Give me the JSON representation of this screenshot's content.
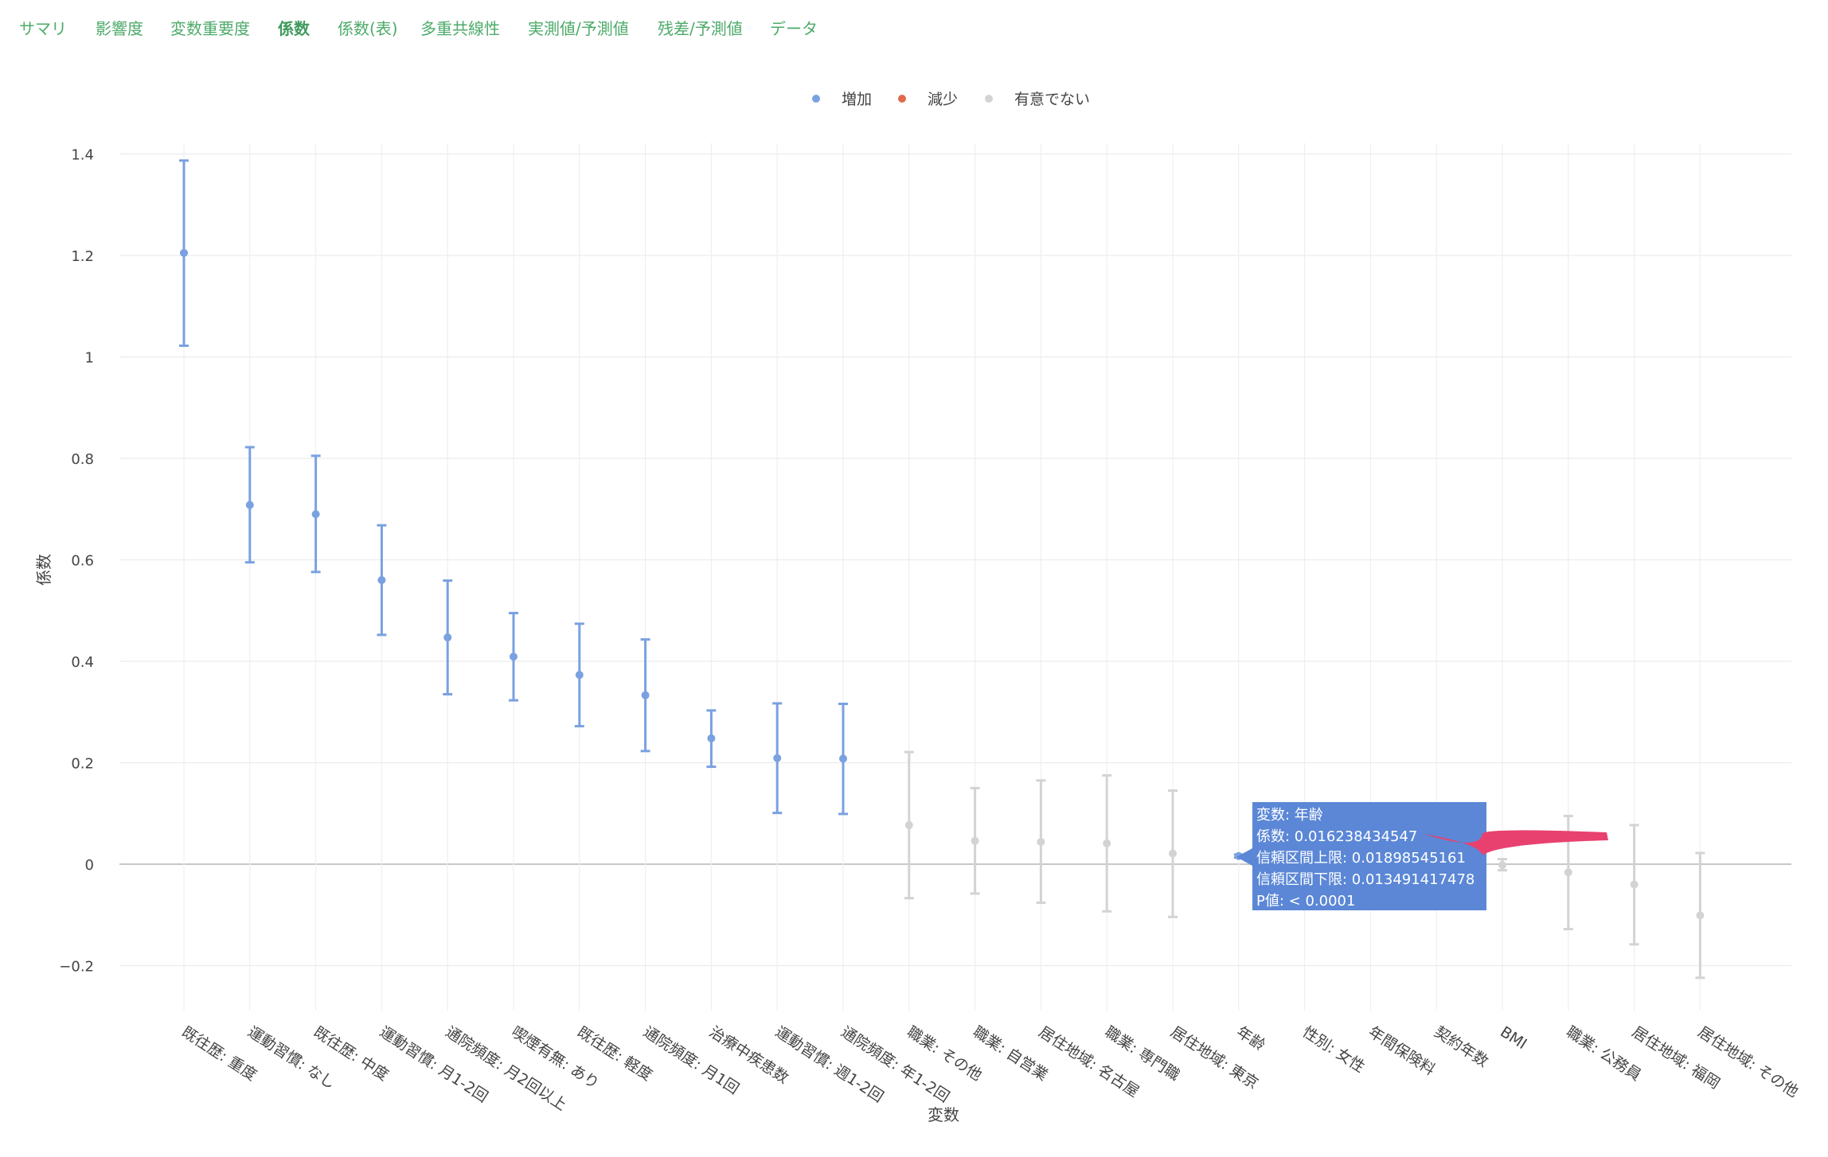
{
  "tabs": [
    {
      "label": "サマリ",
      "active": false
    },
    {
      "label": "影響度",
      "active": false
    },
    {
      "label": "変数重要度",
      "active": false
    },
    {
      "label": "係数",
      "active": true
    },
    {
      "label": "係数(表)",
      "active": false
    },
    {
      "label": "多重共線性",
      "active": false
    },
    {
      "label": "実測値/予測値",
      "active": false
    },
    {
      "label": "残差/予測値",
      "active": false
    },
    {
      "label": "データ",
      "active": false
    }
  ],
  "colors": {
    "increase": "#7aa1e0",
    "decrease": "#e06b4a",
    "not_significant": "#d3d3d3",
    "tooltip_bg": "#5b87d6",
    "arrow": "#e8416f",
    "tab_text": "#4daa6a"
  },
  "chart_data": {
    "type": "scatter",
    "xlabel": "変数",
    "ylabel": "係数",
    "ylim": [
      -0.3,
      1.48
    ],
    "yticks": [
      {
        "value": 1.4,
        "label": "1.4"
      },
      {
        "value": 1.2,
        "label": "1.2"
      },
      {
        "value": 1.0,
        "label": "1"
      },
      {
        "value": 0.8,
        "label": "0.8"
      },
      {
        "value": 0.6,
        "label": "0.6"
      },
      {
        "value": 0.4,
        "label": "0.4"
      },
      {
        "value": 0.2,
        "label": "0.2"
      },
      {
        "value": 0.0,
        "label": "0"
      },
      {
        "value": -0.2,
        "label": "−0.2"
      }
    ],
    "grid": true,
    "legend": {
      "placement": "top-center",
      "items": [
        {
          "label": "増加",
          "key": "increase"
        },
        {
          "label": "減少",
          "key": "decrease"
        },
        {
          "label": "有意でない",
          "key": "not_significant"
        }
      ]
    },
    "points": [
      {
        "category": "既往歴: 重度",
        "value": 1.205,
        "lower": 1.022,
        "upper": 1.387,
        "group": "increase"
      },
      {
        "category": "運動習慣: なし",
        "value": 0.708,
        "lower": 0.595,
        "upper": 0.822,
        "group": "increase"
      },
      {
        "category": "既往歴: 中度",
        "value": 0.69,
        "lower": 0.576,
        "upper": 0.805,
        "group": "increase"
      },
      {
        "category": "運動習慣: 月1-2回",
        "value": 0.56,
        "lower": 0.452,
        "upper": 0.668,
        "group": "increase"
      },
      {
        "category": "通院頻度: 月2回以上",
        "value": 0.447,
        "lower": 0.335,
        "upper": 0.559,
        "group": "increase"
      },
      {
        "category": "喫煙有無: あり",
        "value": 0.409,
        "lower": 0.323,
        "upper": 0.495,
        "group": "increase"
      },
      {
        "category": "既往歴: 軽度",
        "value": 0.373,
        "lower": 0.272,
        "upper": 0.474,
        "group": "increase"
      },
      {
        "category": "通院頻度: 月1回",
        "value": 0.333,
        "lower": 0.223,
        "upper": 0.443,
        "group": "increase"
      },
      {
        "category": "治療中疾患数",
        "value": 0.248,
        "lower": 0.192,
        "upper": 0.303,
        "group": "increase"
      },
      {
        "category": "運動習慣: 週1-2回",
        "value": 0.209,
        "lower": 0.101,
        "upper": 0.317,
        "group": "increase"
      },
      {
        "category": "通院頻度: 年1-2回",
        "value": 0.208,
        "lower": 0.099,
        "upper": 0.316,
        "group": "increase"
      },
      {
        "category": "職業: その他",
        "value": 0.077,
        "lower": -0.067,
        "upper": 0.221,
        "group": "not_significant"
      },
      {
        "category": "職業: 自営業",
        "value": 0.046,
        "lower": -0.058,
        "upper": 0.15,
        "group": "not_significant"
      },
      {
        "category": "居住地域: 名古屋",
        "value": 0.044,
        "lower": -0.076,
        "upper": 0.165,
        "group": "not_significant"
      },
      {
        "category": "職業: 専門職",
        "value": 0.041,
        "lower": -0.093,
        "upper": 0.175,
        "group": "not_significant"
      },
      {
        "category": "居住地域: 東京",
        "value": 0.021,
        "lower": -0.104,
        "upper": 0.145,
        "group": "not_significant"
      },
      {
        "category": "年齢",
        "value": 0.016,
        "lower": 0.013,
        "upper": 0.019,
        "group": "increase"
      },
      {
        "category": "性別: 女性",
        "value": null,
        "lower": null,
        "upper": null,
        "group": "not_significant"
      },
      {
        "category": "年間保険料",
        "value": null,
        "lower": null,
        "upper": null,
        "group": "not_significant"
      },
      {
        "category": "契約年数",
        "value": null,
        "lower": null,
        "upper": null,
        "group": "not_significant"
      },
      {
        "category": "BMI",
        "value": -0.002,
        "lower": -0.012,
        "upper": 0.01,
        "group": "not_significant"
      },
      {
        "category": "職業: 公務員",
        "value": -0.016,
        "lower": -0.128,
        "upper": 0.095,
        "group": "not_significant"
      },
      {
        "category": "居住地域: 福岡",
        "value": -0.04,
        "lower": -0.158,
        "upper": 0.077,
        "group": "not_significant"
      },
      {
        "category": "居住地域: その他",
        "value": -0.101,
        "lower": -0.224,
        "upper": 0.022,
        "group": "not_significant"
      }
    ],
    "tooltip": {
      "lines": [
        "変数: 年齢",
        "係数: 0.016238434547",
        "信頼区間上限: 0.01898545161",
        "信頼区間下限: 0.013491417478",
        "P値: < 0.0001"
      ]
    }
  }
}
